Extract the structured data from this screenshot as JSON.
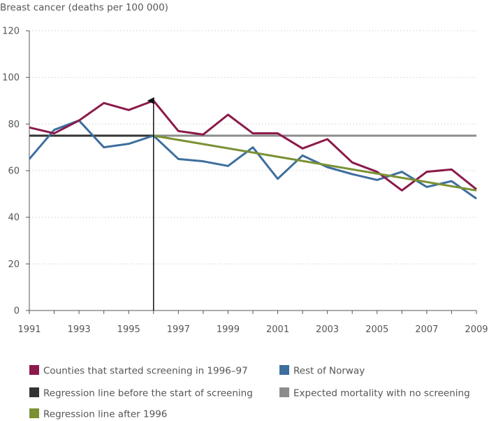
{
  "chart_data": {
    "type": "line",
    "title": "Breast cancer (deaths per 100 000)",
    "xlabel": "",
    "ylabel": "Breast cancer (deaths per 100 000)",
    "xlim": [
      1991,
      2009
    ],
    "ylim": [
      0,
      120
    ],
    "x_ticks": [
      1991,
      1993,
      1995,
      1997,
      1999,
      2001,
      2003,
      2005,
      2007,
      2009
    ],
    "y_ticks": [
      0,
      20,
      40,
      60,
      80,
      100,
      120
    ],
    "grid": "horizontal-dotted",
    "legend_position": "bottom",
    "x": [
      1991,
      1992,
      1993,
      1994,
      1995,
      1996,
      1997,
      1998,
      1999,
      2000,
      2001,
      2002,
      2003,
      2004,
      2005,
      2006,
      2007,
      2008,
      2009
    ],
    "series": [
      {
        "name": "Counties that started screening in 1996–97",
        "color": "#8b1a4a",
        "x": [
          1991,
          1992,
          1993,
          1994,
          1995,
          1996,
          1997,
          1998,
          1999,
          2000,
          2001,
          2002,
          2003,
          2004,
          2005,
          2006,
          2007,
          2008,
          2009
        ],
        "values": [
          78.5,
          76,
          81.5,
          89,
          86,
          90,
          77,
          75.5,
          84,
          76,
          76,
          69.5,
          73.5,
          63.5,
          59.5,
          51.5,
          59.5,
          60.5,
          52
        ]
      },
      {
        "name": "Rest of Norway",
        "color": "#3e6e9e",
        "x": [
          1991,
          1992,
          1993,
          1994,
          1995,
          1996,
          1997,
          1998,
          1999,
          2000,
          2001,
          2002,
          2003,
          2004,
          2005,
          2006,
          2007,
          2008,
          2009
        ],
        "values": [
          65,
          77.5,
          81.5,
          70,
          71.5,
          75,
          65,
          64,
          62,
          70,
          56.5,
          66.5,
          61.5,
          58.5,
          56,
          59.5,
          53,
          55.5,
          48
        ]
      },
      {
        "name": "Regression line before the start of screening",
        "color": "#333333",
        "x": [
          1991,
          1996
        ],
        "values": [
          75,
          75
        ]
      },
      {
        "name": "Expected mortality with no screening",
        "color": "#8c8c8c",
        "x": [
          1996,
          2009
        ],
        "values": [
          75,
          75
        ]
      },
      {
        "name": "Regression line after 1996",
        "color": "#7a9133",
        "x": [
          1996,
          2009
        ],
        "values": [
          75,
          51.5
        ]
      }
    ],
    "annotations": [
      {
        "type": "arrow",
        "x": 1996,
        "from_y": 0,
        "to_y": 90
      }
    ]
  }
}
